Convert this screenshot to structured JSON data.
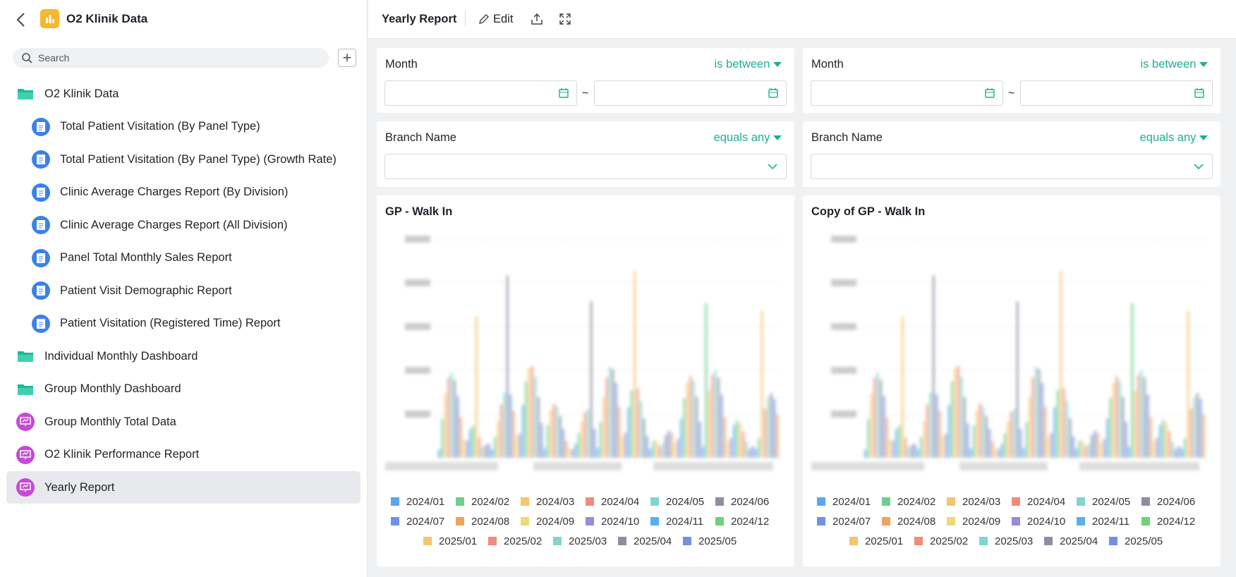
{
  "sidebar": {
    "app_title": "O2 Klinik Data",
    "search_placeholder": "Search",
    "items": [
      "O2 Klinik Data",
      "Total Patient Visitation (By Panel Type)",
      "Total Patient Visitation (By Panel Type) (Growth Rate)",
      "Clinic Average Charges Report (By Division)",
      "Clinic Average Charges Report (All Division)",
      "Panel Total Monthly Sales Report",
      "Patient Visit Demographic Report",
      "Patient Visitation (Registered Time) Report",
      "Individual Monthly Dashboard",
      "Group Monthly Dashboard",
      "Group Monthly Total Data",
      "O2 Klinik Performance Report",
      "Yearly Report"
    ]
  },
  "header": {
    "title": "Yearly Report",
    "edit": "Edit"
  },
  "panels": [
    {
      "month_filter": {
        "label": "Month",
        "operator": "is between",
        "separator": "~"
      },
      "branch_filter": {
        "label": "Branch Name",
        "operator": "equals any"
      },
      "chart": {
        "title": "GP - Walk In",
        "legend": [
          {
            "name": "2024/01",
            "color": "#5aa6f0"
          },
          {
            "name": "2024/02",
            "color": "#6fd08c"
          },
          {
            "name": "2024/03",
            "color": "#f5c46e"
          },
          {
            "name": "2024/04",
            "color": "#f28b7a"
          },
          {
            "name": "2024/05",
            "color": "#7fd6d0"
          },
          {
            "name": "2024/06",
            "color": "#8c8fa3"
          },
          {
            "name": "2024/07",
            "color": "#7390e6"
          },
          {
            "name": "2024/08",
            "color": "#f0a35e"
          },
          {
            "name": "2024/09",
            "color": "#f0d77a"
          },
          {
            "name": "2024/10",
            "color": "#9b8ad8"
          },
          {
            "name": "2024/11",
            "color": "#5aadf0"
          },
          {
            "name": "2024/12",
            "color": "#70d07c"
          },
          {
            "name": "2025/01",
            "color": "#f5c46e"
          },
          {
            "name": "2025/02",
            "color": "#f28b7a"
          },
          {
            "name": "2025/03",
            "color": "#7fd6d0"
          },
          {
            "name": "2025/04",
            "color": "#8c8fa3"
          },
          {
            "name": "2025/05",
            "color": "#7390e6"
          }
        ]
      }
    },
    {
      "month_filter": {
        "label": "Month",
        "operator": "is between",
        "separator": "~"
      },
      "branch_filter": {
        "label": "Branch Name",
        "operator": "equals any"
      },
      "chart": {
        "title": "Copy of GP - Walk In",
        "legend": [
          {
            "name": "2024/01",
            "color": "#5aa6f0"
          },
          {
            "name": "2024/02",
            "color": "#6fd08c"
          },
          {
            "name": "2024/03",
            "color": "#f5c46e"
          },
          {
            "name": "2024/04",
            "color": "#f28b7a"
          },
          {
            "name": "2024/05",
            "color": "#7fd6d0"
          },
          {
            "name": "2024/06",
            "color": "#8c8fa3"
          },
          {
            "name": "2024/07",
            "color": "#7390e6"
          },
          {
            "name": "2024/08",
            "color": "#f0a35e"
          },
          {
            "name": "2024/09",
            "color": "#f0d77a"
          },
          {
            "name": "2024/10",
            "color": "#9b8ad8"
          },
          {
            "name": "2024/11",
            "color": "#5aadf0"
          },
          {
            "name": "2024/12",
            "color": "#70d07c"
          },
          {
            "name": "2025/01",
            "color": "#f5c46e"
          },
          {
            "name": "2025/02",
            "color": "#f28b7a"
          },
          {
            "name": "2025/03",
            "color": "#7fd6d0"
          },
          {
            "name": "2025/04",
            "color": "#8c8fa3"
          },
          {
            "name": "2025/05",
            "color": "#7390e6"
          }
        ]
      }
    }
  ]
}
